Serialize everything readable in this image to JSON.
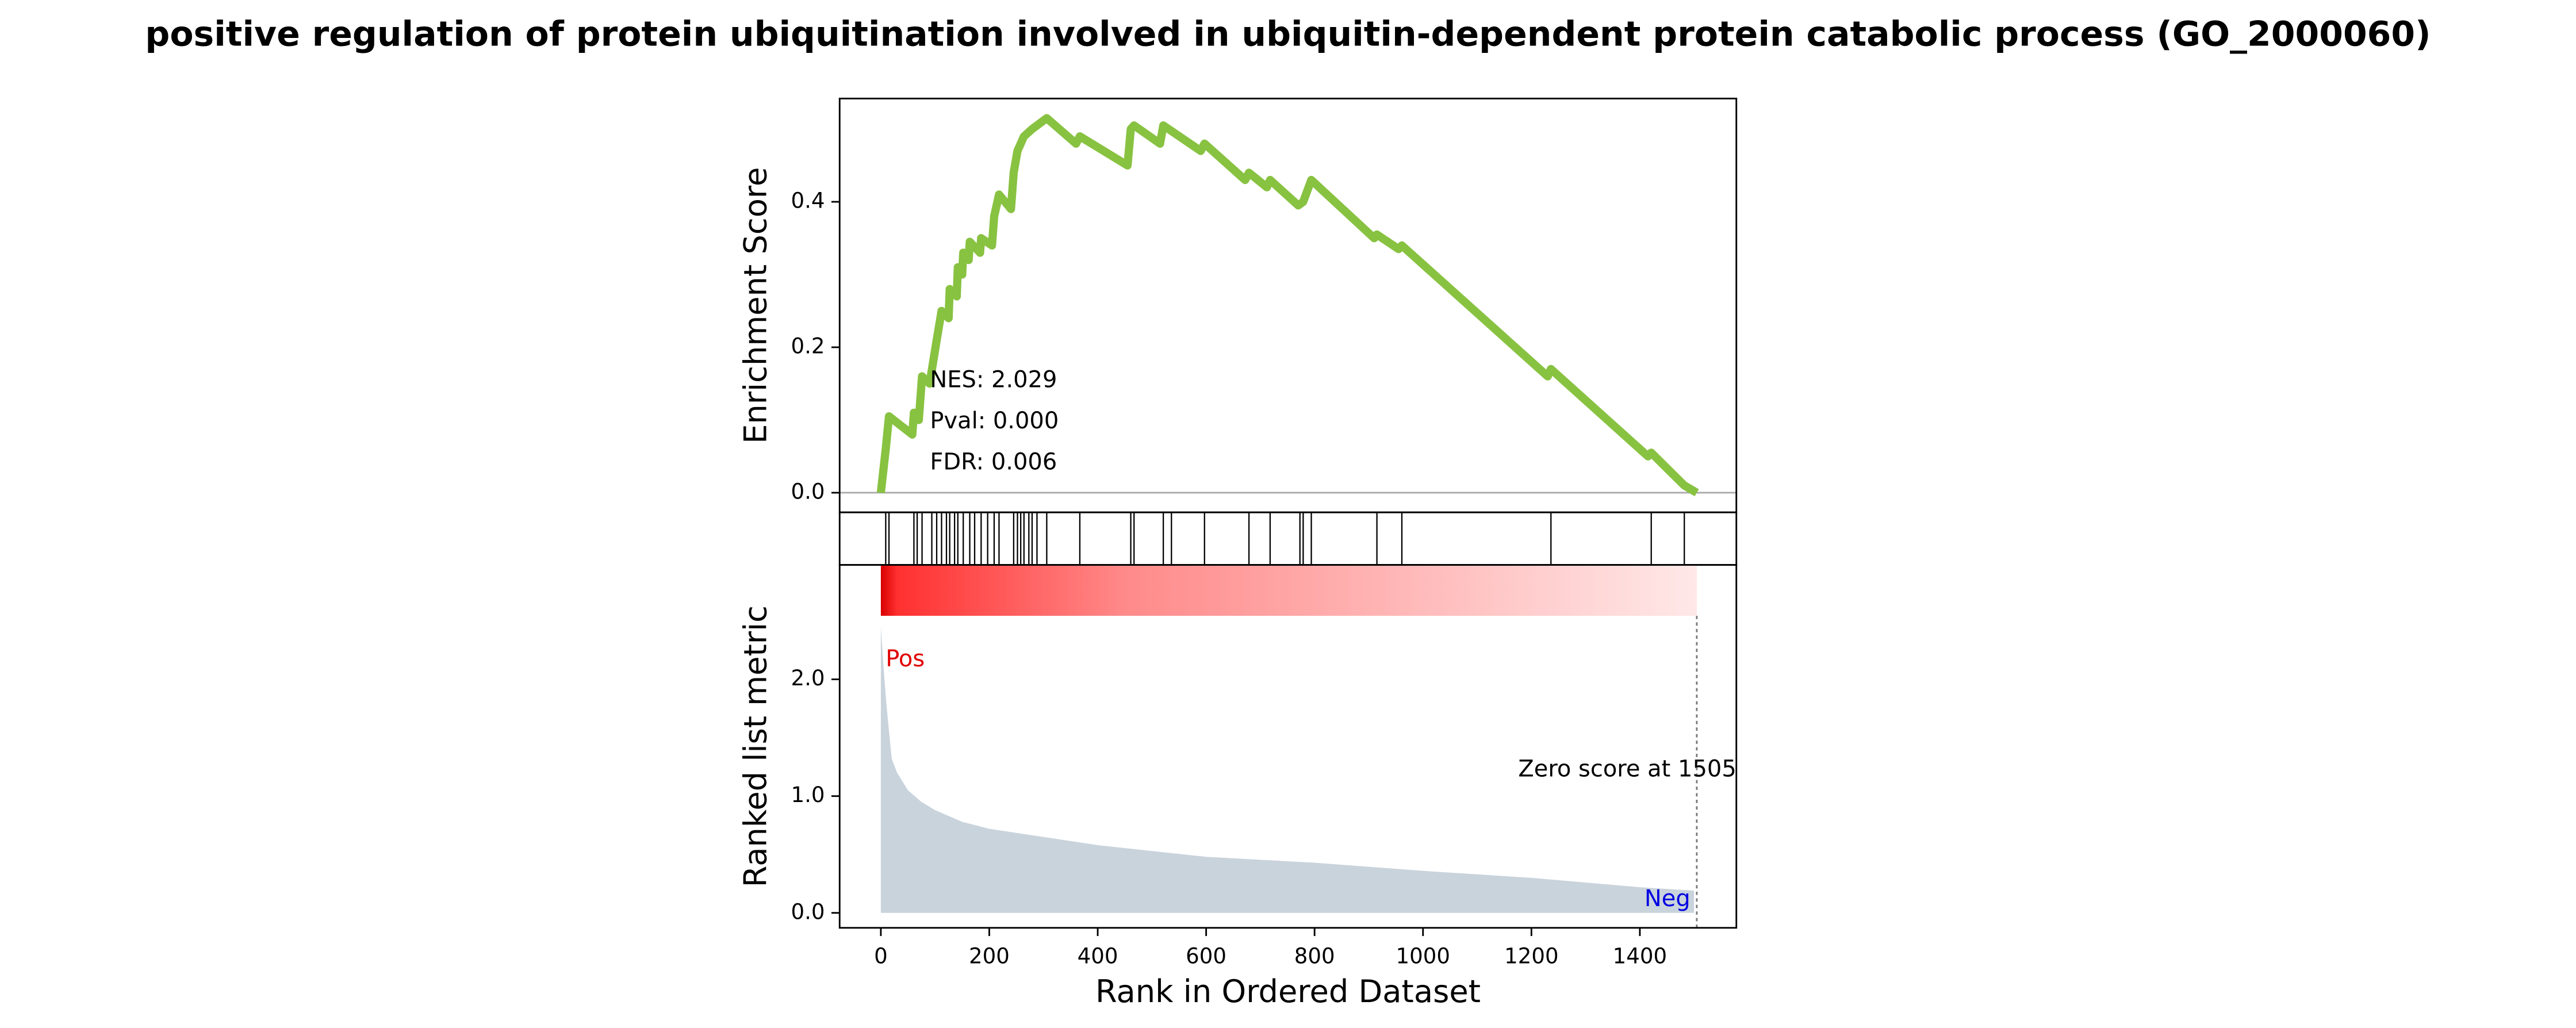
{
  "chart_data": [
    {
      "type": "line",
      "title": "positive regulation of protein ubiquitination involved in ubiquitin-dependent protein catabolic process (GO_2000060)",
      "ylabel": "Enrichment Score",
      "color": "#88c241",
      "x": [
        0,
        9,
        15,
        58,
        61,
        70,
        76,
        90,
        103,
        112,
        125,
        127,
        140,
        142,
        150,
        152,
        162,
        164,
        183,
        185,
        205,
        209,
        218,
        240,
        245,
        252,
        264,
        279,
        306,
        360,
        367,
        455,
        461,
        467,
        515,
        521,
        590,
        597,
        672,
        679,
        712,
        718,
        770,
        779,
        794,
        910,
        915,
        955,
        961,
        1230,
        1236,
        1415,
        1421,
        1482,
        1505
      ],
      "values": [
        0,
        0.06,
        0.105,
        0.08,
        0.11,
        0.1,
        0.16,
        0.15,
        0.21,
        0.25,
        0.24,
        0.28,
        0.27,
        0.31,
        0.3,
        0.33,
        0.32,
        0.345,
        0.33,
        0.35,
        0.34,
        0.38,
        0.41,
        0.39,
        0.44,
        0.47,
        0.49,
        0.5,
        0.515,
        0.48,
        0.49,
        0.45,
        0.5,
        0.505,
        0.48,
        0.505,
        0.47,
        0.48,
        0.43,
        0.44,
        0.42,
        0.43,
        0.395,
        0.4,
        0.43,
        0.35,
        0.355,
        0.335,
        0.34,
        0.16,
        0.17,
        0.05,
        0.055,
        0.01,
        0
      ],
      "xlim": [
        -76,
        1578
      ],
      "ylim": [
        -0.027,
        0.542
      ],
      "yticks": [
        {
          "value": 0,
          "label": "0.0"
        },
        {
          "value": 0.2,
          "label": "0.2"
        },
        {
          "value": 0.4,
          "label": "0.4"
        }
      ],
      "annotations": [
        "NES: 2.029",
        "Pval: 0.000",
        "FDR: 0.006"
      ]
    },
    {
      "type": "event",
      "x": [
        9,
        15,
        61,
        67,
        76,
        94,
        103,
        112,
        121,
        127,
        136,
        142,
        152,
        164,
        173,
        185,
        197,
        209,
        218,
        245,
        252,
        258,
        264,
        273,
        279,
        288,
        306,
        367,
        461,
        467,
        521,
        536,
        597,
        679,
        718,
        773,
        779,
        794,
        915,
        961,
        1236,
        1421,
        1482
      ],
      "xlim": [
        -76,
        1578
      ]
    },
    {
      "type": "area",
      "ylabel": "Ranked list metric",
      "xlabel": "Rank in Ordered Dataset",
      "color": "#c9d3dc",
      "x": [
        0,
        5,
        10,
        20,
        30,
        50,
        75,
        100,
        150,
        200,
        300,
        400,
        500,
        600,
        800,
        1000,
        1200,
        1400,
        1500
      ],
      "values": [
        2.45,
        2.1,
        1.8,
        1.32,
        1.2,
        1.05,
        0.95,
        0.88,
        0.78,
        0.72,
        0.65,
        0.58,
        0.53,
        0.48,
        0.43,
        0.36,
        0.3,
        0.22,
        0.19
      ],
      "xlim": [
        -76,
        1578
      ],
      "ylim": [
        -0.128,
        2.98
      ],
      "xticks": [
        0,
        200,
        400,
        600,
        800,
        1000,
        1200,
        1400
      ],
      "yticks": [
        {
          "value": 0,
          "label": "0.0"
        },
        {
          "value": 1,
          "label": "1.0"
        },
        {
          "value": 2,
          "label": "2.0"
        }
      ],
      "zero_score_rank": 1505,
      "annotations": [
        {
          "text": "Pos",
          "color": "#e00000"
        },
        {
          "text": "Neg",
          "color": "#0000e0"
        },
        {
          "text": "Zero score at 1505",
          "color": "#000000"
        }
      ]
    }
  ]
}
